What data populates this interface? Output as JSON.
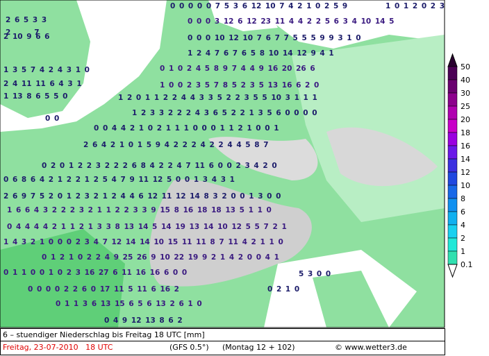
{
  "map": {
    "value_rows": [
      "2      7",
      "0 0 0 0 0 7 5 3 6 12 10 7 4 2 1 0 2 5 9",
      "1 0 1 2 0 2 3",
      "2 6 5 3 3",
      "0 0 0 3 12 6 12 23 11 4 4 2 2 5 6 3 4 10 14 5",
      "2 10 9 6 6",
      "0 0 0 10 12 10 7 6 7 7 5 5 5 9 9 3 1 0",
      "1 2 4 7 6 7 6 5 8 10 14 12 9 4 1",
      "1 3 5 7 4 2 4 3 1 0",
      "0 1 0 2 4 5 8 9 7 4 4 9 16 20 26 6",
      "2 4 11 11 6 4 3 1",
      "1 0 0 2 3 5 7 8 5 2 3 5 13 16 6 2 0",
      "1 13 8 6 5 5 0",
      "1 2 0 1 1 2 2 4 4 3 3 5 2 2 3 5 5 10 3 1 1 1",
      "1 2 3 3 2 2 2 4 3 6 5 2 2 1 3 5 6 0 0 0 0",
      "0 0",
      "0 0 4 4 2 1 0 2 1 1 1 0 0 0 1 1 2 1 0 0 1",
      "2 6 4 2 1 0 1 5 9 4 2 2 2 4 2 2 4 4 5 8 7",
      "0 2 0 1 2 2 3 2 2 2 6 8 4 2 2 4 7 11 6 0 0 2 3 4 2 0",
      "0 6 8 6 4 2 1 2 2 1 2 5 4 7 9 11 12 5 0 0 1 3 4 3 1",
      "2 6 9 7 5 2 0 1 2 3 2 1 2 4 4 6 12 11 12 14 8 3 2 0 0 1 3 0 0",
      "1 6 6 4 3 2 2 2 3 2 1 1 2 2 3 3 9 15 8 16 18 18 13 5 1 1 0",
      "0 4 4 4 4 2 1 1 2 1 3 3 8 13 14 5 14 19 13 14 10 12 5 5 7 2 1",
      "1 4 3 2 1 0 0 0 2 3 4 7 12 14 14 10 15 11 11 8 7 11 4 2 1 1 0",
      "0 1 2 1 0 2 2 4 9 25 26 9 10 22 19 9 2 1 4 2 0 0 4 1",
      "0 1 1 0 0 1 0 2 3 16 27 6 11 16 16 6 0 0",
      "5 3 0 0",
      "0 0 0 0 2 2 6 0 17 11 5 11 6 16 2",
      "0 2 1 0",
      "0 1 1 3 6 13 15 6 5 6 13 2 6 1 0",
      "0 4 9 12 13 8 6 2"
    ],
    "legend": {
      "labels": [
        "50",
        "40",
        "30",
        "25",
        "20",
        "18",
        "16",
        "14",
        "12",
        "10",
        "8",
        "6",
        "4",
        "2",
        "1",
        "0.1"
      ]
    },
    "footer": {
      "title": "6 – stuendiger Niederschlag bis Freitag 18 UTC [mm]",
      "date": "Freitag, 23-07-2010   18 UTC",
      "model": "(GFS 0.5°)",
      "run": "(Montag 12 + 102)",
      "credit": "© www.wetter3.de"
    }
  }
}
